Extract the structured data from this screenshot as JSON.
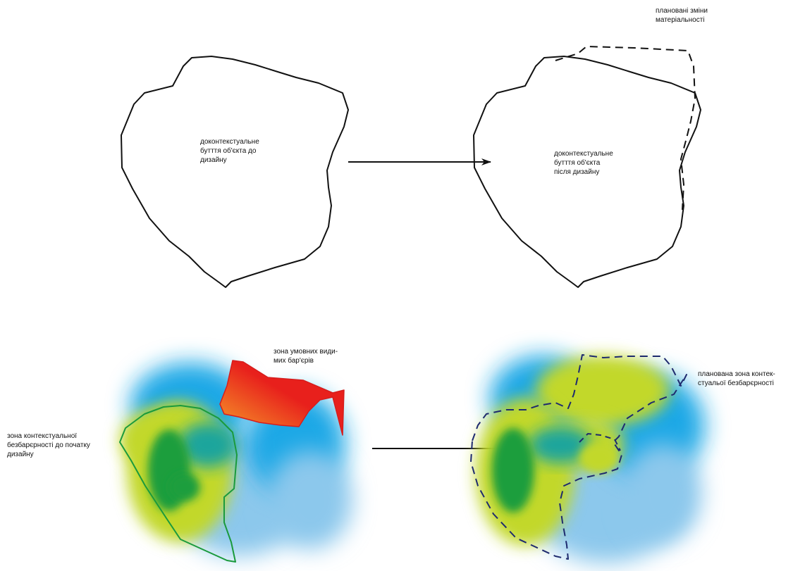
{
  "colors": {
    "outline": "#111111",
    "arrow": "#111111",
    "dashed_outline_top": "#111111",
    "dashed_outline_bottom": "#1e2a6e",
    "green_zone_outline": "#1a9a3c",
    "red_zone_outline": "#d61d1d",
    "blue_field": "#1ea8e6",
    "light_blue_field": "#8cc8ec",
    "yellow_green_field": "#c2d82a",
    "dark_green_field": "#1e9e3c",
    "teal_field": "#1aa59c",
    "red_field": "#e8201c",
    "orange_field": "#f6a02a"
  },
  "top_left": {
    "label_lines": [
      "доконтекстуальне",
      "бутття об'єкта до",
      "дизайну"
    ]
  },
  "top_right": {
    "label_lines": [
      "доконтекстуальне",
      "бутття об'єкта",
      "після дизайну"
    ],
    "annotation_lines": [
      "плановані зміни",
      "матеріальності"
    ]
  },
  "bottom_left": {
    "barriers_label_lines": [
      "зона умовних види-",
      "мих бар'єрів"
    ],
    "accessibility_label_lines": [
      "зона контекстуальної",
      "безбарєрності до початку",
      "дизайну"
    ]
  },
  "bottom_right": {
    "planned_label_lines": [
      "планована зона контек-",
      "стуальої безбарєрності"
    ]
  },
  "arrows": [
    {
      "name": "top-transition-arrow"
    },
    {
      "name": "bottom-transition-arrow"
    }
  ]
}
